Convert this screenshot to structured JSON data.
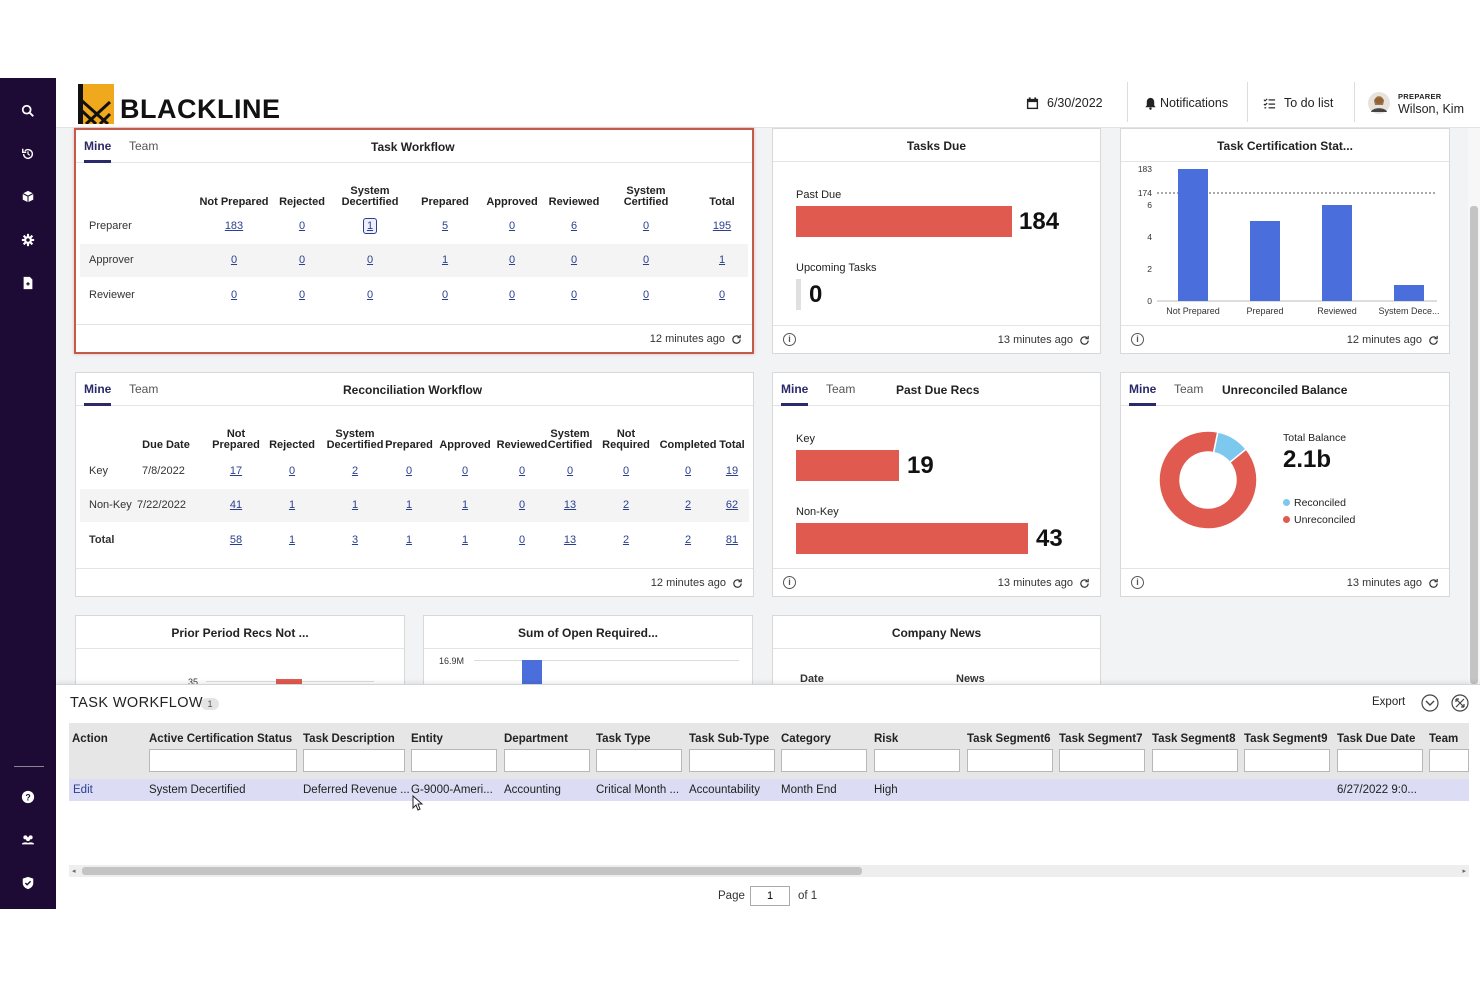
{
  "header": {
    "logo_text": "BLACKLINE",
    "date": "6/30/2022",
    "notifications": "Notifications",
    "todo": "To do list",
    "user_role": "PREPARER",
    "user_name": "Wilson, Kim"
  },
  "task_workflow": {
    "title": "Task Workflow",
    "tab_mine": "Mine",
    "tab_team": "Team",
    "columns": [
      "Not Prepared",
      "Rejected",
      "System Decertified",
      "Prepared",
      "Approved",
      "Reviewed",
      "System Certified",
      "Total"
    ],
    "rows": [
      {
        "label": "Preparer",
        "values": [
          "183",
          "0",
          "1",
          "5",
          "0",
          "6",
          "0",
          "195"
        ]
      },
      {
        "label": "Approver",
        "values": [
          "0",
          "0",
          "0",
          "1",
          "0",
          "0",
          "0",
          "1"
        ]
      },
      {
        "label": "Reviewer",
        "values": [
          "0",
          "0",
          "0",
          "0",
          "0",
          "0",
          "0",
          "0"
        ]
      }
    ],
    "updated": "12 minutes ago"
  },
  "tasks_due": {
    "title": "Tasks Due",
    "past_due_label": "Past Due",
    "past_due_value": 184,
    "upcoming_label": "Upcoming Tasks",
    "upcoming_value": 0,
    "updated": "13 minutes ago"
  },
  "task_cert": {
    "title": "Task Certification Stat...",
    "updated": "12 minutes ago"
  },
  "recon_workflow": {
    "title": "Reconciliation Workflow",
    "tab_mine": "Mine",
    "tab_team": "Team",
    "columns": [
      "Due Date",
      "Not Prepared",
      "Rejected",
      "System Decertified",
      "Prepared",
      "Approved",
      "Reviewed",
      "System Certified",
      "Not Required",
      "Completed",
      "Total"
    ],
    "rows": [
      {
        "label": "Key",
        "due": "7/8/2022",
        "values": [
          "17",
          "0",
          "2",
          "0",
          "0",
          "0",
          "0",
          "0",
          "0",
          "19"
        ]
      },
      {
        "label": "Non-Key",
        "due": "7/22/2022",
        "values": [
          "41",
          "1",
          "1",
          "1",
          "1",
          "0",
          "13",
          "2",
          "2",
          "62"
        ]
      },
      {
        "label": "Total",
        "due": "",
        "values": [
          "58",
          "1",
          "3",
          "1",
          "1",
          "0",
          "13",
          "2",
          "2",
          "81"
        ]
      }
    ],
    "updated": "12 minutes ago"
  },
  "past_due_recs": {
    "title": "Past Due Recs",
    "tab_mine": "Mine",
    "tab_team": "Team",
    "key_label": "Key",
    "key_value": 19,
    "nonkey_label": "Non-Key",
    "nonkey_value": 43,
    "updated": "13 minutes ago"
  },
  "unreconciled": {
    "title": "Unreconciled Balance",
    "tab_mine": "Mine",
    "tab_team": "Team",
    "total_label": "Total Balance",
    "total_value": "2.1b",
    "legend_reconciled": "Reconciled",
    "legend_unreconciled": "Unreconciled",
    "updated": "13 minutes ago"
  },
  "prior_period": {
    "title": "Prior Period Recs Not ...",
    "tick": "35"
  },
  "sum_open": {
    "title": "Sum of Open Required...",
    "tick": "16.9M"
  },
  "company_news": {
    "title": "Company News",
    "col_date": "Date",
    "col_news": "News"
  },
  "chart_data": [
    {
      "type": "bar",
      "title": "Task Certification Stat...",
      "categories": [
        "Not Prepared",
        "Prepared",
        "Reviewed",
        "System Dece..."
      ],
      "values": [
        183,
        5,
        6,
        1
      ],
      "ytick_labels": [
        "0",
        "2",
        "4",
        "6",
        "174",
        "183"
      ],
      "reference_line": 174,
      "broken_axis": true
    },
    {
      "type": "bar",
      "title": "Past Due Recs",
      "categories": [
        "Key",
        "Non-Key"
      ],
      "values": [
        19,
        43
      ]
    },
    {
      "type": "pie",
      "title": "Unreconciled Balance",
      "categories": [
        "Reconciled",
        "Unreconciled"
      ],
      "values": [
        0.11,
        0.89
      ],
      "colors": [
        "#7cc8ef",
        "#e05a4f"
      ]
    }
  ],
  "grid": {
    "title": "TASK WORKFLOW",
    "count": "1",
    "export": "Export",
    "columns": [
      "Action",
      "Active Certification Status",
      "Task Description",
      "Entity",
      "Department",
      "Task Type",
      "Task Sub-Type",
      "Category",
      "Risk",
      "Task Segment6",
      "Task Segment7",
      "Task Segment8",
      "Task Segment9",
      "Task Due Date",
      "Team"
    ],
    "row": {
      "action": "Edit",
      "status": "System Decertified",
      "description": "Deferred Revenue ...",
      "entity": "G-9000-Ameri...",
      "department": "Accounting",
      "task_type": "Critical Month ...",
      "sub_type": "Accountability",
      "category": "Month End",
      "risk": "High",
      "due_date": "6/27/2022 9:0..."
    },
    "page_label": "Page",
    "page_value": "1",
    "page_of": "of 1"
  },
  "colors": {
    "sidebar": "#1d0b35",
    "accent_bar": "#e05a4f",
    "chart_blue": "#4a6fdc",
    "selected_row": "#dcdcf4"
  }
}
